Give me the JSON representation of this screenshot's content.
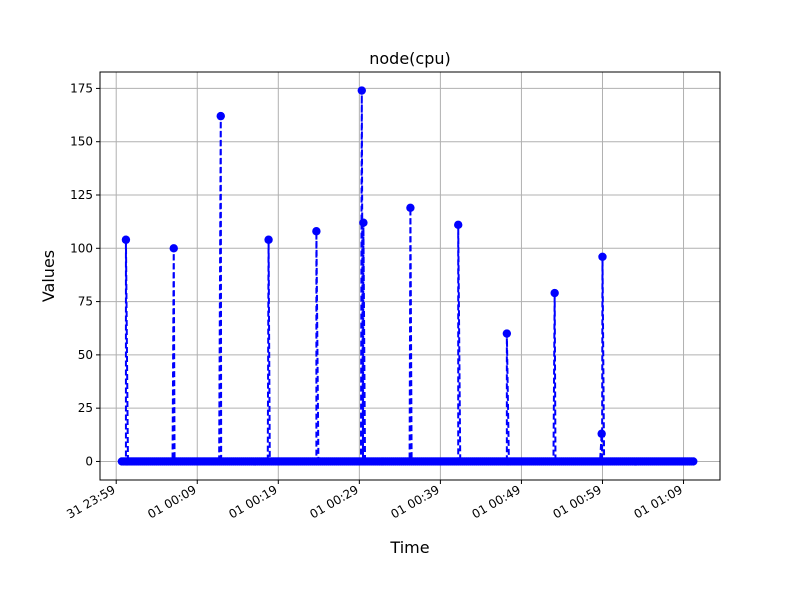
{
  "chart_data": {
    "type": "line",
    "title": "node(cpu)",
    "xlabel": "Time",
    "ylabel": "Values",
    "ylim": [
      -8.7,
      182.7
    ],
    "xlim_minutes": [
      -2.0,
      74.5
    ],
    "grid": true,
    "series_color": "#0000ff",
    "line_style": "dashed",
    "marker": "circle",
    "x_ticks": [
      {
        "label": "31 23:59",
        "minute": 0
      },
      {
        "label": "01 00:09",
        "minute": 10
      },
      {
        "label": "01 00:19",
        "minute": 20
      },
      {
        "label": "01 00:29",
        "minute": 30
      },
      {
        "label": "01 00:39",
        "minute": 40
      },
      {
        "label": "01 00:49",
        "minute": 50
      },
      {
        "label": "01 00:59",
        "minute": 60
      },
      {
        "label": "01 01:09",
        "minute": 70
      }
    ],
    "y_ticks": [
      0,
      25,
      50,
      75,
      100,
      125,
      150,
      175
    ],
    "baseline": {
      "start_minute": 0.7,
      "end_minute": 71.3,
      "step_minutes": 0.25,
      "value": 0
    },
    "spikes": [
      {
        "minute": 1.2,
        "value": 104
      },
      {
        "minute": 7.1,
        "value": 100
      },
      {
        "minute": 12.9,
        "value": 162
      },
      {
        "minute": 18.8,
        "value": 104
      },
      {
        "minute": 24.7,
        "value": 108
      },
      {
        "minute": 30.3,
        "value": 174
      },
      {
        "minute": 30.5,
        "value": 112
      },
      {
        "minute": 36.3,
        "value": 119
      },
      {
        "minute": 42.2,
        "value": 111
      },
      {
        "minute": 48.2,
        "value": 60
      },
      {
        "minute": 54.1,
        "value": 79
      },
      {
        "minute": 59.9,
        "value": 13
      },
      {
        "minute": 60.0,
        "value": 96
      }
    ]
  }
}
